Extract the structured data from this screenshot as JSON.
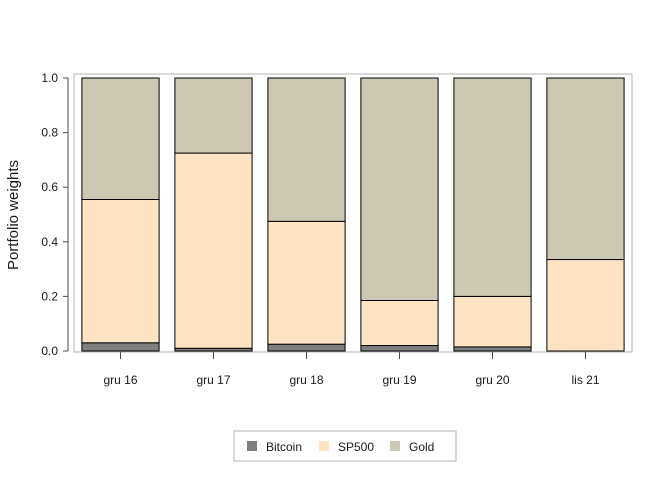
{
  "chart_data": {
    "type": "bar",
    "stacked": true,
    "categories": [
      "gru 16",
      "gru 17",
      "gru 18",
      "gru 19",
      "gru 20",
      "lis 21"
    ],
    "series": [
      {
        "name": "Bitcoin",
        "color": "#7f7f7f",
        "values": [
          0.03,
          0.01,
          0.025,
          0.02,
          0.015,
          0.0
        ]
      },
      {
        "name": "SP500",
        "color": "#ffe4c4",
        "values": [
          0.525,
          0.715,
          0.45,
          0.165,
          0.185,
          0.335
        ]
      },
      {
        "name": "Gold",
        "color": "#cdc8b1",
        "values": [
          0.445,
          0.275,
          0.525,
          0.815,
          0.8,
          0.665
        ]
      }
    ],
    "title": "",
    "xlabel": "",
    "ylabel": "Portfolio weights",
    "ylim": [
      0,
      1
    ],
    "yticks": [
      "0.0",
      "0.2",
      "0.4",
      "0.6",
      "0.8",
      "1.0"
    ],
    "grid": false,
    "legend_position": "bottom"
  }
}
